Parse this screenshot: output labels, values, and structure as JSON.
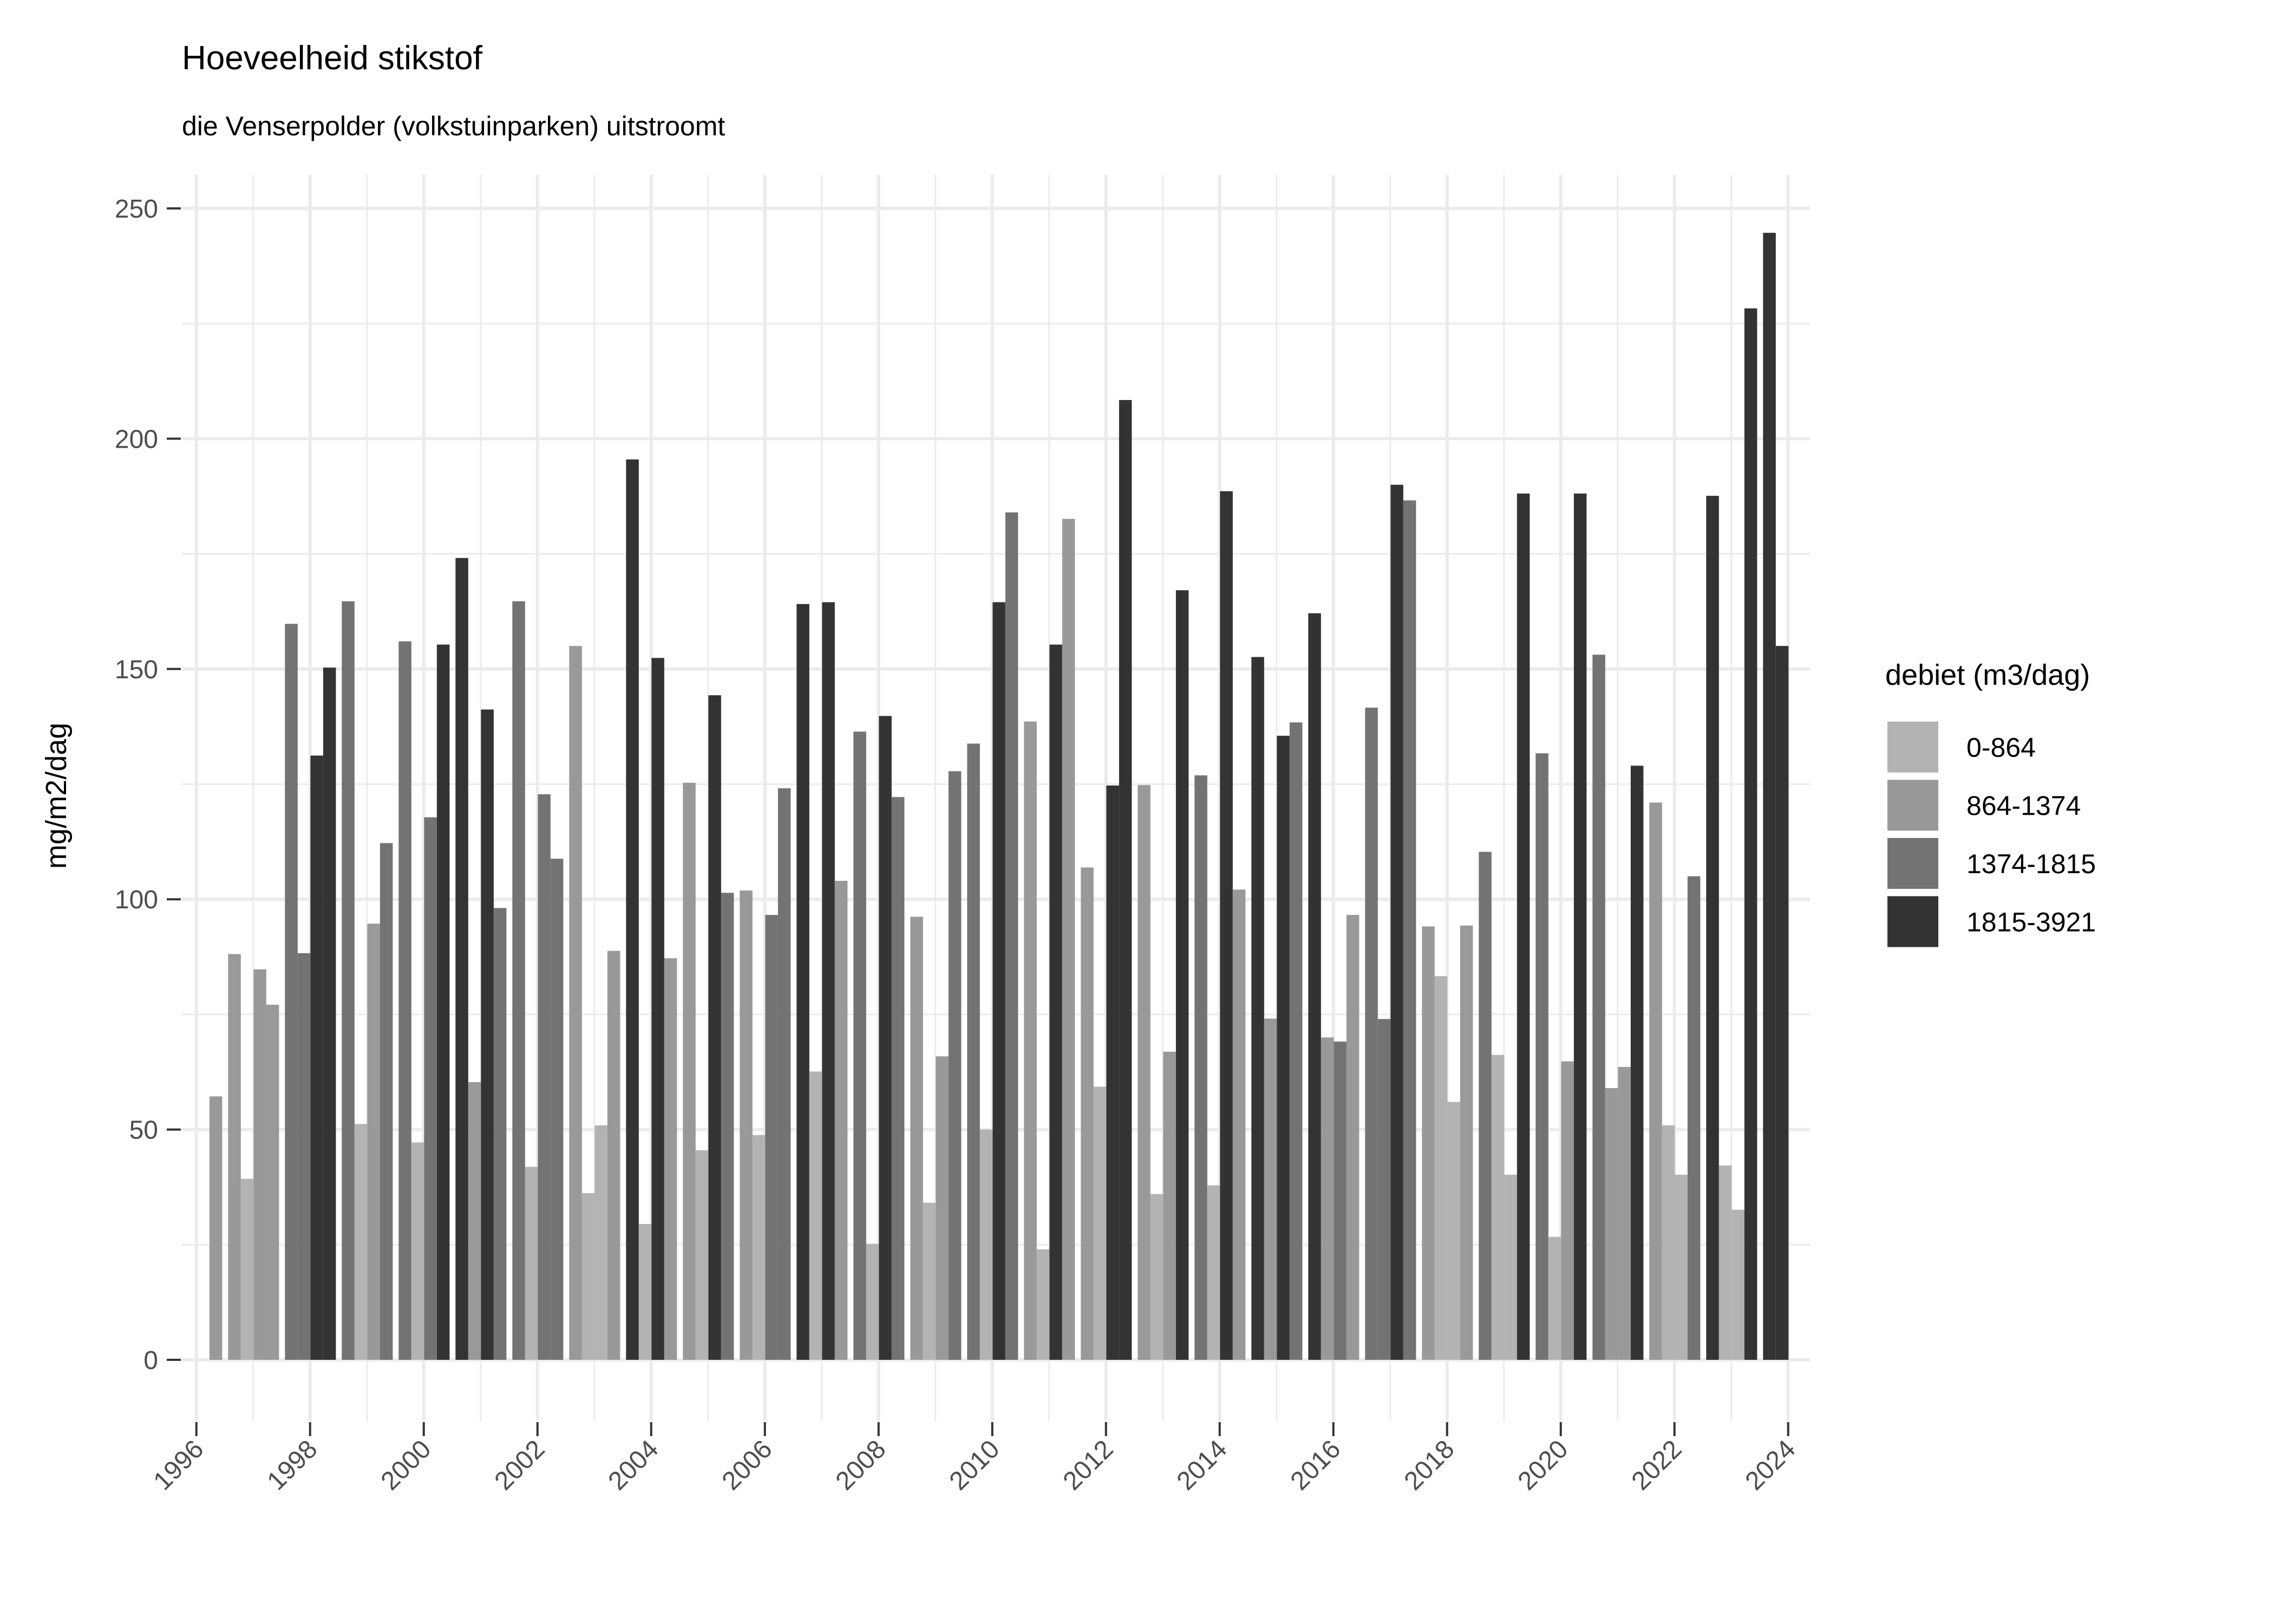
{
  "chart_data": {
    "type": "bar",
    "title": "Hoeveelheid stikstof",
    "subtitle": "die Venserpolder (volkstuinparken) uitstroomt",
    "xlabel": "",
    "ylabel": "mg/m2/dag",
    "xlim": [
      1996,
      2024
    ],
    "ylim": [
      0,
      250
    ],
    "x_ticks": [
      "1996",
      "1998",
      "2000",
      "2002",
      "2004",
      "2006",
      "2008",
      "2010",
      "2012",
      "2014",
      "2016",
      "2018",
      "2020",
      "2022",
      "2024"
    ],
    "y_ticks": [
      "0",
      "50",
      "100",
      "150",
      "200",
      "250"
    ],
    "grid": true,
    "legend": {
      "title": "debiet (m3/dag)",
      "placement": "right",
      "entries": [
        {
          "label": "0-864",
          "color": "#b3b3b3"
        },
        {
          "label": "864-1374",
          "color": "#999999"
        },
        {
          "label": "1374-1815",
          "color": "#737373"
        },
        {
          "label": "1815-3921",
          "color": "#333333"
        }
      ]
    },
    "bar_layout_note": "each group holds 4 consecutive seasonal bars; value and debiet class index",
    "groups": [
      {
        "year": 1995,
        "bars": [
          null,
          null,
          null,
          [
            57.2,
            1
          ]
        ]
      },
      {
        "year": 1996,
        "bars": [
          [
            88.1,
            1
          ],
          [
            39.3,
            0
          ],
          [
            84.8,
            1
          ],
          [
            77.1,
            1
          ]
        ]
      },
      {
        "year": 1997,
        "bars": [
          [
            159.8,
            2
          ],
          [
            88.3,
            2
          ],
          [
            131.2,
            3
          ],
          [
            150.3,
            3
          ]
        ]
      },
      {
        "year": 1998,
        "bars": [
          [
            164.7,
            2
          ],
          [
            51.2,
            0
          ],
          [
            94.7,
            1
          ],
          [
            112.2,
            2
          ]
        ]
      },
      {
        "year": 1999,
        "bars": [
          [
            156.0,
            2
          ],
          [
            47.2,
            0
          ],
          [
            117.8,
            2
          ],
          [
            155.3,
            3
          ]
        ]
      },
      {
        "year": 2000,
        "bars": [
          [
            174.1,
            3
          ],
          [
            60.3,
            1
          ],
          [
            141.2,
            3
          ],
          [
            98.1,
            2
          ]
        ]
      },
      {
        "year": 2001,
        "bars": [
          [
            164.7,
            2
          ],
          [
            41.9,
            0
          ],
          [
            122.8,
            2
          ],
          [
            108.8,
            2
          ]
        ]
      },
      {
        "year": 2002,
        "bars": [
          [
            155.0,
            1
          ],
          [
            36.2,
            0
          ],
          [
            50.9,
            0
          ],
          [
            88.8,
            1
          ]
        ]
      },
      {
        "year": 2003,
        "bars": [
          [
            195.5,
            3
          ],
          [
            29.5,
            0
          ],
          [
            152.4,
            3
          ],
          [
            87.2,
            1
          ]
        ]
      },
      {
        "year": 2004,
        "bars": [
          [
            125.3,
            1
          ],
          [
            45.5,
            0
          ],
          [
            144.3,
            3
          ],
          [
            101.4,
            2
          ]
        ]
      },
      {
        "year": 2005,
        "bars": [
          [
            101.9,
            1
          ],
          [
            48.8,
            0
          ],
          [
            96.6,
            2
          ],
          [
            124.1,
            2
          ]
        ]
      },
      {
        "year": 2006,
        "bars": [
          [
            164.1,
            3
          ],
          [
            62.6,
            0
          ],
          [
            164.5,
            3
          ],
          [
            104.0,
            1
          ]
        ]
      },
      {
        "year": 2007,
        "bars": [
          [
            136.4,
            2
          ],
          [
            25.2,
            0
          ],
          [
            139.8,
            3
          ],
          [
            122.2,
            2
          ]
        ]
      },
      {
        "year": 2008,
        "bars": [
          [
            96.2,
            1
          ],
          [
            34.1,
            0
          ],
          [
            65.9,
            1
          ],
          [
            127.8,
            2
          ]
        ]
      },
      {
        "year": 2009,
        "bars": [
          [
            133.8,
            2
          ],
          [
            50.0,
            0
          ],
          [
            164.5,
            3
          ],
          [
            184.0,
            2
          ]
        ]
      },
      {
        "year": 2010,
        "bars": [
          [
            138.6,
            1
          ],
          [
            24.0,
            0
          ],
          [
            155.3,
            3
          ],
          [
            182.6,
            1
          ]
        ]
      },
      {
        "year": 2011,
        "bars": [
          [
            106.9,
            1
          ],
          [
            59.3,
            0
          ],
          [
            124.7,
            3
          ],
          [
            208.4,
            3
          ]
        ]
      },
      {
        "year": 2012,
        "bars": [
          [
            124.8,
            1
          ],
          [
            36.0,
            0
          ],
          [
            66.9,
            1
          ],
          [
            167.1,
            3
          ]
        ]
      },
      {
        "year": 2013,
        "bars": [
          [
            126.9,
            2
          ],
          [
            37.9,
            0
          ],
          [
            188.6,
            3
          ],
          [
            102.1,
            1
          ]
        ]
      },
      {
        "year": 2014,
        "bars": [
          [
            152.6,
            3
          ],
          [
            74.1,
            1
          ],
          [
            135.5,
            3
          ],
          [
            138.4,
            2
          ]
        ]
      },
      {
        "year": 2015,
        "bars": [
          [
            162.1,
            3
          ],
          [
            70.0,
            1
          ],
          [
            69.1,
            2
          ],
          [
            96.6,
            1
          ]
        ]
      },
      {
        "year": 2016,
        "bars": [
          [
            141.6,
            2
          ],
          [
            74.0,
            2
          ],
          [
            190.0,
            3
          ],
          [
            186.6,
            2
          ]
        ]
      },
      {
        "year": 2017,
        "bars": [
          [
            94.1,
            1
          ],
          [
            83.3,
            0
          ],
          [
            56.0,
            0
          ],
          [
            94.3,
            1
          ]
        ]
      },
      {
        "year": 2018,
        "bars": [
          [
            110.3,
            2
          ],
          [
            66.2,
            0
          ],
          [
            40.2,
            0
          ],
          [
            188.1,
            3
          ]
        ]
      },
      {
        "year": 2019,
        "bars": [
          [
            131.7,
            2
          ],
          [
            26.7,
            0
          ],
          [
            64.8,
            1
          ],
          [
            188.1,
            3
          ]
        ]
      },
      {
        "year": 2020,
        "bars": [
          [
            153.1,
            2
          ],
          [
            59.0,
            1
          ],
          [
            63.6,
            1
          ],
          [
            129.0,
            3
          ]
        ]
      },
      {
        "year": 2021,
        "bars": [
          [
            121.0,
            1
          ],
          [
            50.9,
            0
          ],
          [
            40.2,
            0
          ],
          [
            105.0,
            2
          ]
        ]
      },
      {
        "year": 2022,
        "bars": [
          [
            187.6,
            3
          ],
          [
            42.2,
            0
          ],
          [
            32.6,
            0
          ],
          [
            228.3,
            3
          ]
        ]
      },
      {
        "year": 2023,
        "bars": [
          [
            244.7,
            3
          ],
          [
            155.0,
            3
          ],
          null,
          null
        ]
      }
    ]
  }
}
